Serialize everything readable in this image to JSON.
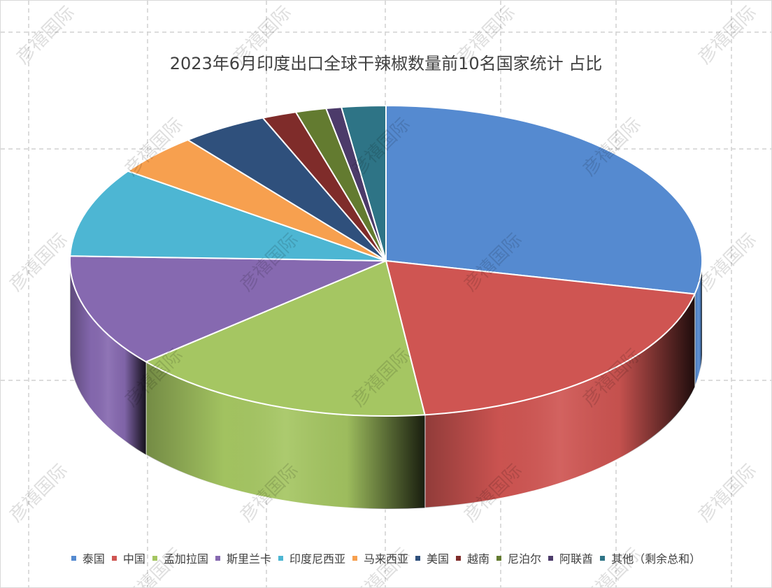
{
  "watermark": "彦禧国际",
  "chart_data": {
    "type": "pie",
    "title": "2023年6月印度出口全球干辣椒数量前10名国家统计 占比",
    "legend_position": "bottom",
    "slices": [
      {
        "name": "泰国",
        "value": 29.0,
        "color": "#558ad0"
      },
      {
        "name": "中国",
        "value": 20.0,
        "color": "#cf5552"
      },
      {
        "name": "孟加拉国",
        "value": 16.0,
        "color": "#a5c662"
      },
      {
        "name": "斯里兰卡",
        "value": 12.0,
        "color": "#8669b0"
      },
      {
        "name": "印度尼西亚",
        "value": 9.5,
        "color": "#4db6d3"
      },
      {
        "name": "马来西亚",
        "value": 4.5,
        "color": "#f7a04f"
      },
      {
        "name": "美国",
        "value": 4.5,
        "color": "#2f507c"
      },
      {
        "name": "越南",
        "value": 1.8,
        "color": "#7f2c2a"
      },
      {
        "name": "尼泊尔",
        "value": 1.6,
        "color": "#637b30"
      },
      {
        "name": "阿联酋",
        "value": 0.8,
        "color": "#4c3b6a"
      },
      {
        "name": "其他（剩余总和）",
        "value": 2.3,
        "color": "#2e7486"
      }
    ]
  }
}
